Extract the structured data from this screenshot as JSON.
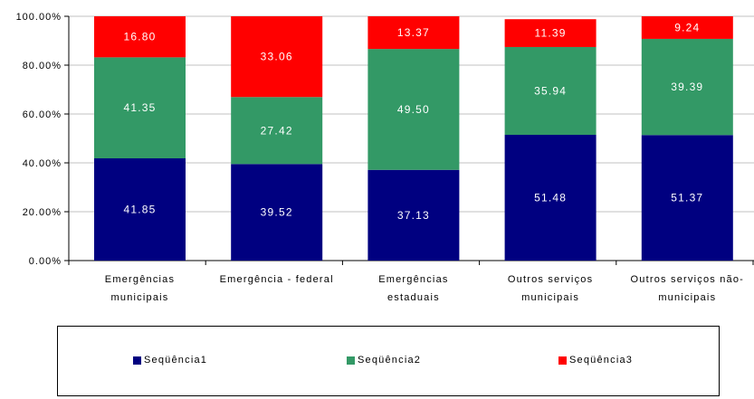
{
  "chart_data": {
    "type": "bar",
    "stacked": true,
    "categories": [
      [
        "Emergências",
        "municipais"
      ],
      [
        "Emergência - federal"
      ],
      [
        "Emergências",
        "estaduais"
      ],
      [
        "Outros serviços",
        "municipais"
      ],
      [
        "Outros serviços não-",
        "municipais"
      ]
    ],
    "series": [
      {
        "name": "Seqüência1",
        "color": "#000080",
        "values": [
          41.85,
          39.52,
          37.13,
          51.48,
          51.37
        ]
      },
      {
        "name": "Seqüência2",
        "color": "#339966",
        "values": [
          41.35,
          27.42,
          49.5,
          35.94,
          39.39
        ]
      },
      {
        "name": "Seqüência3",
        "color": "#ff0000",
        "values": [
          16.8,
          33.06,
          13.37,
          11.39,
          9.24
        ]
      }
    ],
    "data_labels": [
      [
        "41.85",
        "39.52",
        "37.13",
        "51.48",
        "51.37"
      ],
      [
        "41.35",
        "27.42",
        "49.50",
        "35.94",
        "39.39"
      ],
      [
        "16.80",
        "33.06",
        "13.37",
        "11.39",
        "9.24"
      ]
    ],
    "ylim": [
      0,
      100
    ],
    "yticks": [
      "0.00%",
      "20.00%",
      "40.00%",
      "60.00%",
      "80.00%",
      "100.00%"
    ],
    "grid": true,
    "legend": "bottom"
  }
}
